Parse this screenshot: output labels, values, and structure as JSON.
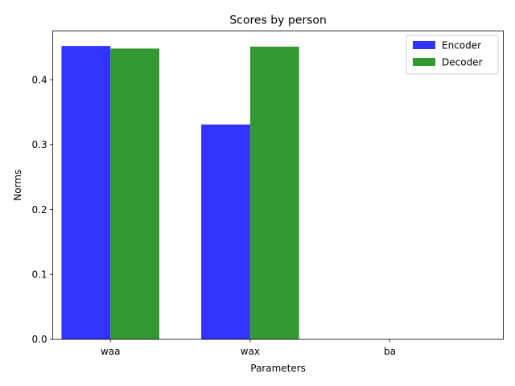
{
  "chart_data": {
    "type": "bar",
    "title": "Scores by person",
    "xlabel": "Parameters",
    "ylabel": "Norms",
    "categories": [
      "waa",
      "wax",
      "ba"
    ],
    "series": [
      {
        "name": "Encoder",
        "values": [
          0.452,
          0.331,
          0.0
        ],
        "color": "#3333ff"
      },
      {
        "name": "Decoder",
        "values": [
          0.448,
          0.451,
          0.0
        ],
        "color": "#339933"
      }
    ],
    "ylim": [
      0,
      0.475
    ],
    "yticks": [
      0.0,
      0.1,
      0.2,
      0.3,
      0.4
    ],
    "ytick_labels": [
      "0.0",
      "0.1",
      "0.2",
      "0.3",
      "0.4"
    ],
    "legend_position": "top-right",
    "grid": false
  }
}
